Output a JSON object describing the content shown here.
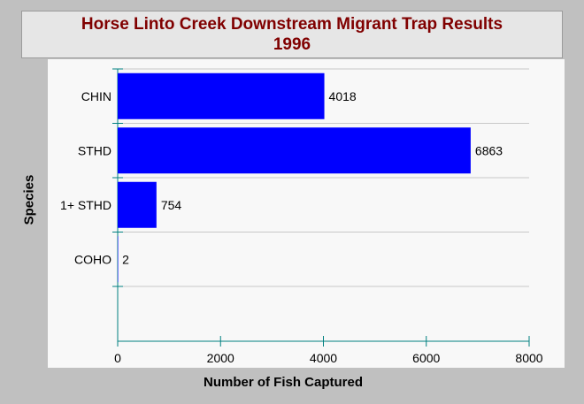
{
  "chart_data": {
    "type": "bar",
    "orientation": "horizontal",
    "title": "Horse Linto Creek Downstream Migrant Trap Results",
    "subtitle": "1996",
    "xlabel": "Number of Fish Captured",
    "ylabel": "Species",
    "categories": [
      "CHIN",
      "STHD",
      "1+ STHD",
      "COHO"
    ],
    "values": [
      4018,
      6863,
      754,
      2
    ],
    "data_labels": [
      "4018",
      "6863",
      "754",
      "2"
    ],
    "xlim": [
      0,
      8000
    ],
    "x_ticks": [
      "0",
      "2000",
      "4000",
      "6000",
      "8000"
    ],
    "grid": "horizontal",
    "legend": "none",
    "colors": {
      "bar": "#0000ff",
      "title": "#800000",
      "background": "#c0c0c0",
      "plot": "#f8f8f8",
      "axis": "#008080",
      "grid": "#c8c8c8"
    }
  }
}
